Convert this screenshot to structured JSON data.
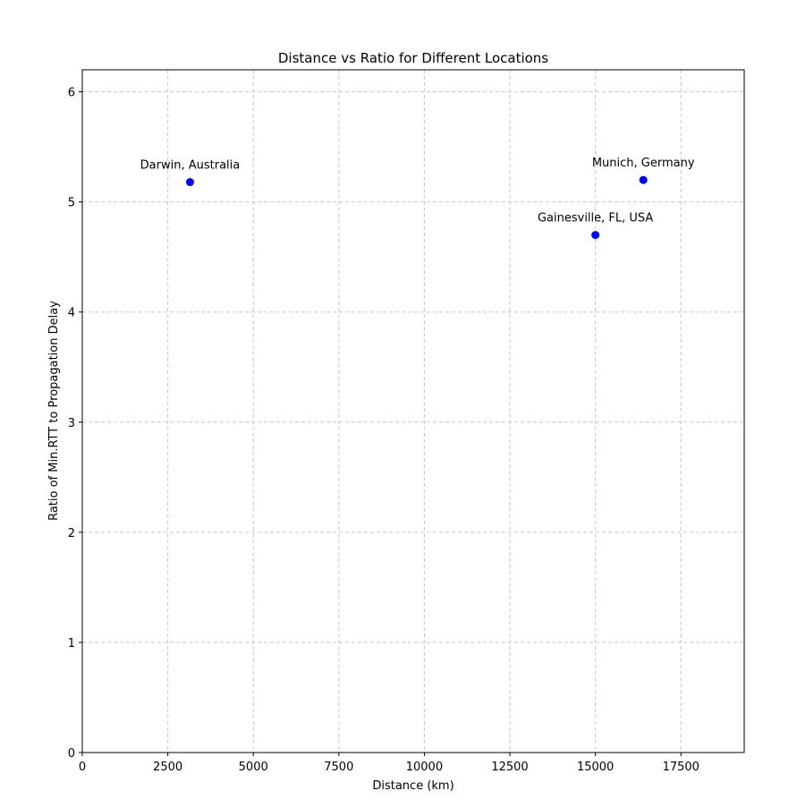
{
  "chart_data": {
    "type": "scatter",
    "title": "Distance vs Ratio for Different Locations",
    "xlabel": "Distance (km)",
    "ylabel": "Ratio of Min.RTT to Propagation Delay",
    "xlim": [
      0,
      19350
    ],
    "ylim": [
      0,
      6.2
    ],
    "x_ticks": [
      0,
      2500,
      5000,
      7500,
      10000,
      12500,
      15000,
      17500
    ],
    "y_ticks": [
      0,
      1,
      2,
      3,
      4,
      5,
      6
    ],
    "grid": true,
    "marker_color": "#0000ff",
    "points": [
      {
        "label": "Darwin, Australia",
        "x": 3150,
        "y": 5.18
      },
      {
        "label": "Munich, Germany",
        "x": 16400,
        "y": 5.2
      },
      {
        "label": "Gainesville, FL, USA",
        "x": 15000,
        "y": 4.7
      }
    ]
  }
}
